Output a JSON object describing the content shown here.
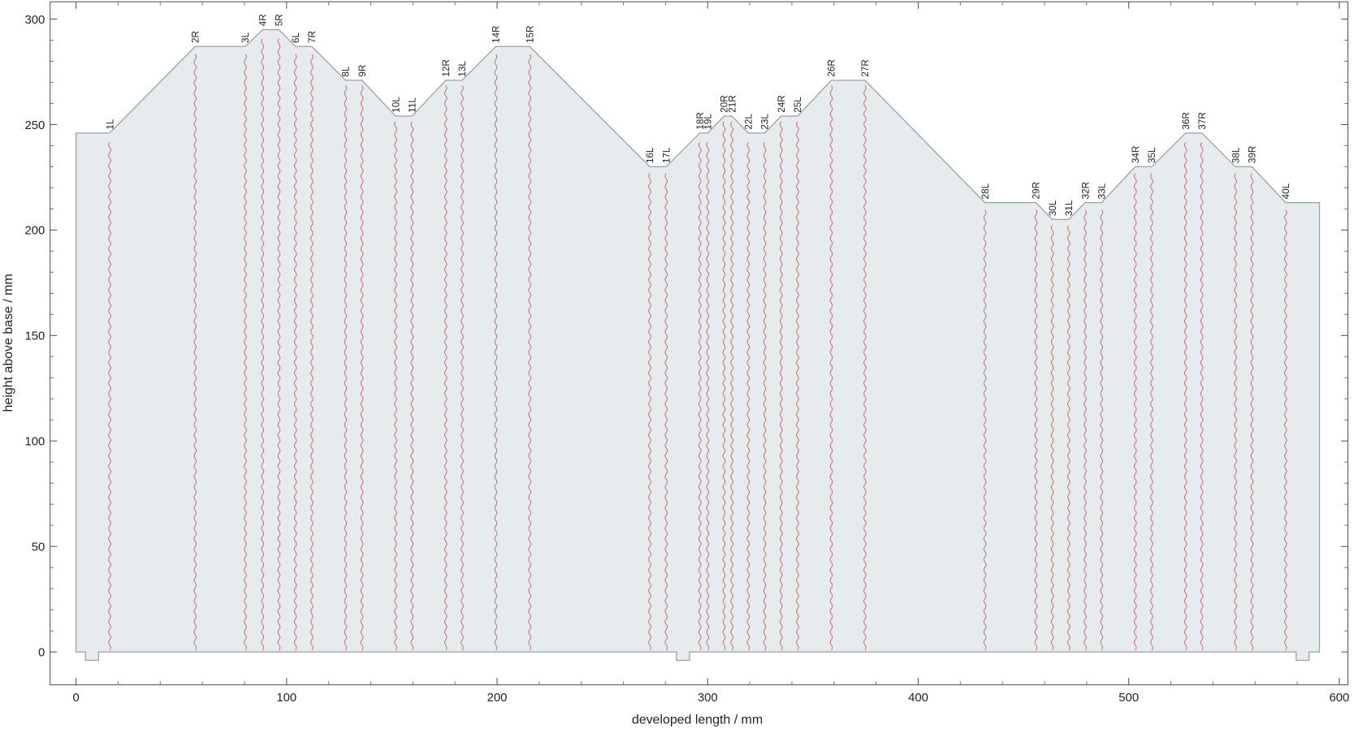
{
  "chart_data": {
    "type": "pattern",
    "x_label": "developed length / mm",
    "y_label": "height above base / mm",
    "xlim": [
      -12.3,
      604.1
    ],
    "ylim": [
      -15.6,
      308.2
    ],
    "xticks": [
      0,
      100,
      200,
      300,
      400,
      500,
      600
    ],
    "yticks": [
      0,
      50,
      100,
      150,
      200,
      250,
      300
    ],
    "fill_color": "#e6ebed",
    "outline_color": "#9aa0a4",
    "fold_color": "#c46a6a",
    "outline": {
      "x": [
        0,
        4.5,
        4.5,
        10.7,
        10.7,
        285.2,
        285.2,
        291.4,
        291.4,
        579.5,
        579.5,
        585.6,
        585.6,
        590.6,
        590.6,
        574.5,
        558.5,
        550.7,
        534.7,
        527,
        510.9,
        503.1,
        487.1,
        479.3,
        471.5,
        463.7,
        455.9,
        431.7,
        374.7,
        358.7,
        342.7,
        334.9,
        327.1,
        319.3,
        311.5,
        307.8,
        300,
        296.3,
        280.3,
        272.5,
        215.5,
        199.4,
        183.4,
        175.6,
        159.6,
        151.8,
        135.8,
        128,
        112,
        104.2,
        96.4,
        88.6,
        80.4,
        56.6,
        16,
        0
      ],
      "y": [
        0,
        0,
        -4,
        -4,
        0,
        0,
        -4,
        -4,
        0,
        0,
        -4,
        -4,
        0,
        0,
        213,
        213,
        230,
        230,
        246,
        246,
        230,
        230,
        213,
        213,
        205,
        205,
        213,
        213,
        271,
        271,
        254,
        254,
        246,
        246,
        254,
        254,
        246,
        246,
        230,
        230,
        287,
        287,
        271,
        271,
        254,
        254,
        271,
        271,
        287,
        287,
        295,
        295,
        287,
        287,
        246,
        246
      ]
    },
    "folds": {
      "labels": [
        "1L",
        "2R",
        "3L",
        "4R",
        "5R",
        "6L",
        "7R",
        "8L",
        "9R",
        "10L",
        "11L",
        "12R",
        "13L",
        "14R",
        "15R",
        "16L",
        "17L",
        "18R",
        "19L",
        "20R",
        "21R",
        "22L",
        "23L",
        "24R",
        "25L",
        "26R",
        "27R",
        "28L",
        "29R",
        "30L",
        "31L",
        "32R",
        "33L",
        "34R",
        "35L",
        "36R",
        "37R",
        "38L",
        "39R",
        "40L"
      ],
      "x": [
        16,
        56.6,
        80.4,
        88.6,
        96.4,
        104.2,
        112,
        128,
        135.8,
        151.8,
        159.6,
        175.6,
        183.4,
        199.4,
        215.5,
        272.5,
        280.3,
        296.3,
        300,
        307.8,
        311.5,
        319.3,
        327.1,
        334.9,
        342.7,
        358.7,
        374.7,
        431.7,
        455.9,
        463.7,
        471.5,
        479.3,
        487.1,
        503.1,
        510.9,
        527,
        534.7,
        550.7,
        558.5,
        574.5
      ],
      "heights": [
        246,
        287,
        287,
        295,
        295,
        287,
        287,
        271,
        271,
        254,
        254,
        271,
        271,
        287,
        287,
        230,
        230,
        246,
        246,
        254,
        254,
        246,
        246,
        254,
        254,
        271,
        271,
        213,
        213,
        205,
        205,
        213,
        213,
        230,
        230,
        246,
        246,
        230,
        230,
        213
      ]
    }
  }
}
